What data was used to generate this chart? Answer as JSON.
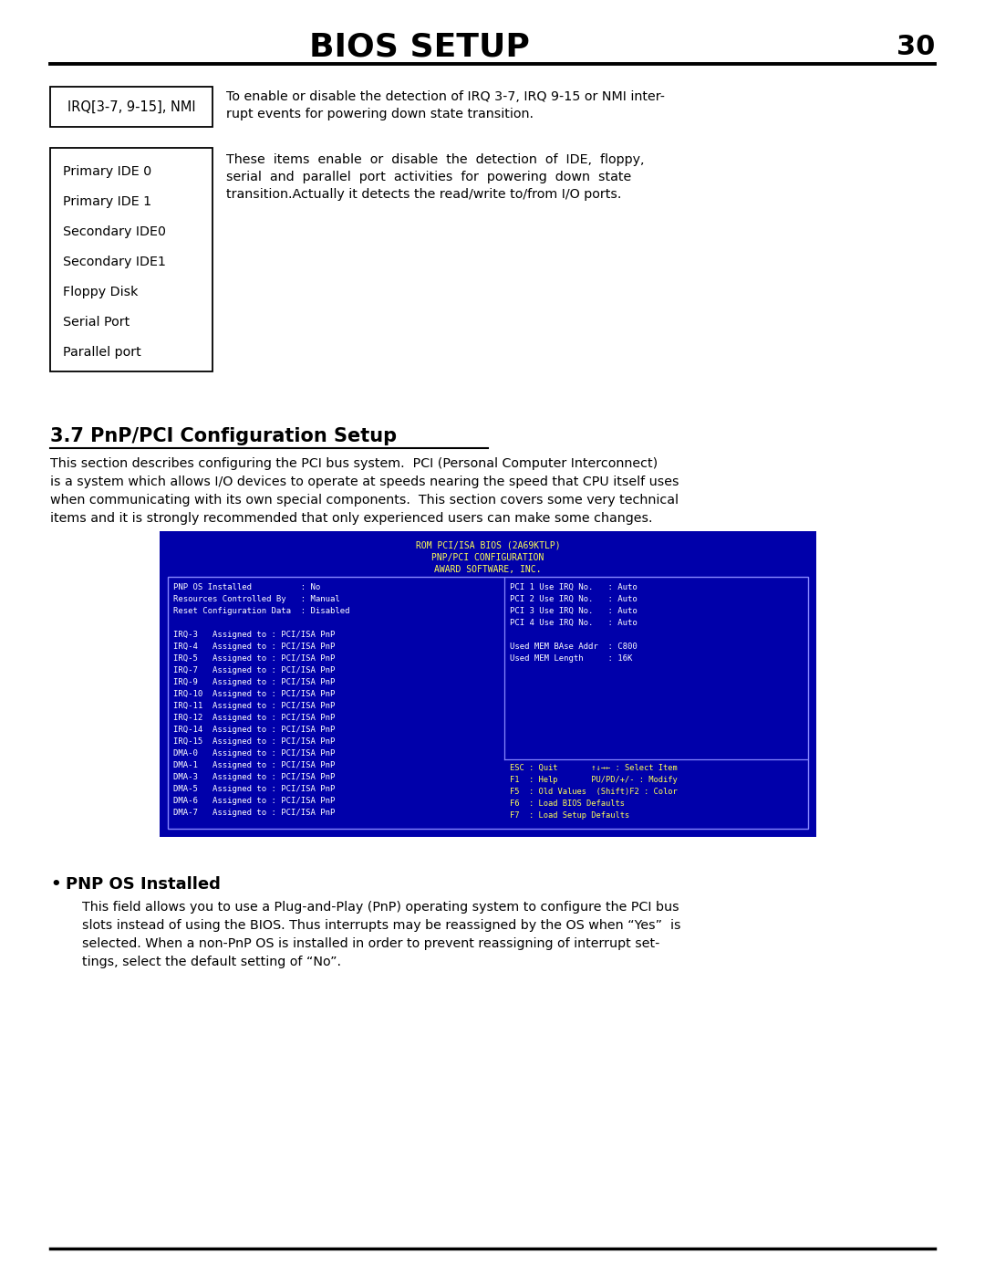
{
  "page_title": "BIOS SETUP",
  "page_number": "30",
  "bg_color": "#ffffff",
  "title_font_size": 26,
  "page_num_font_size": 22,
  "box1_label": "IRQ[3-7, 9-15], NMI",
  "box1_text_line1": "To enable or disable the detection of IRQ 3-7, IRQ 9-15 or NMI inter-",
  "box1_text_line2": "rupt events for powering down state transition.",
  "box2_items": [
    "Primary IDE 0",
    "Primary IDE 1",
    "Secondary IDE0",
    "Secondary IDE1",
    "Floppy Disk",
    "Serial Port",
    "Parallel port"
  ],
  "box2_text_line1": "These  items  enable  or  disable  the  detection  of  IDE,  floppy,",
  "box2_text_line2": "serial  and  parallel  port  activities  for  powering  down  state",
  "box2_text_line3": "transition.Actually it detects the read/write to/from I/O ports.",
  "section_title": "3.7 PnP/PCI Configuration Setup",
  "section_para_line1": "This section describes configuring the PCI bus system.  PCI (Personal Computer Interconnect)",
  "section_para_line2": "is a system which allows I/O devices to operate at speeds nearing the speed that CPU itself uses",
  "section_para_line3": "when communicating with its own special components.  This section covers some very technical",
  "section_para_line4": "items and it is strongly recommended that only experienced users can make some changes.",
  "bios_bg": "#0000aa",
  "bios_fg": "#ffff55",
  "bios_white": "#ffffff",
  "bios_title_lines": [
    "ROM PCI/ISA BIOS (2A69KTLP)",
    "PNP/PCI CONFIGURATION",
    "AWARD SOFTWARE, INC."
  ],
  "bios_left_col": [
    "PNP OS Installed          : No",
    "Resources Controlled By   : Manual",
    "Reset Configuration Data  : Disabled",
    "",
    "IRQ-3   Assigned to : PCI/ISA PnP",
    "IRQ-4   Assigned to : PCI/ISA PnP",
    "IRQ-5   Assigned to : PCI/ISA PnP",
    "IRQ-7   Assigned to : PCI/ISA PnP",
    "IRQ-9   Assigned to : PCI/ISA PnP",
    "IRQ-10  Assigned to : PCI/ISA PnP",
    "IRQ-11  Assigned to : PCI/ISA PnP",
    "IRQ-12  Assigned to : PCI/ISA PnP",
    "IRQ-14  Assigned to : PCI/ISA PnP",
    "IRQ-15  Assigned to : PCI/ISA PnP",
    "DMA-0   Assigned to : PCI/ISA PnP",
    "DMA-1   Assigned to : PCI/ISA PnP",
    "DMA-3   Assigned to : PCI/ISA PnP",
    "DMA-5   Assigned to : PCI/ISA PnP",
    "DMA-6   Assigned to : PCI/ISA PnP",
    "DMA-7   Assigned to : PCI/ISA PnP"
  ],
  "bios_right_top": [
    "PCI 1 Use IRQ No.   : Auto",
    "PCI 2 Use IRQ No.   : Auto",
    "PCI 3 Use IRQ No.   : Auto",
    "PCI 4 Use IRQ No.   : Auto",
    "",
    "Used MEM BAse Addr  : C800",
    "Used MEM Length     : 16K"
  ],
  "bios_right_bottom": [
    "ESC : Quit       ↑↓→← : Select Item",
    "F1  : Help       PU/PD/+/- : Modify",
    "F5  : Old Values  (Shift)F2 : Color",
    "F6  : Load BIOS Defaults",
    "F7  : Load Setup Defaults"
  ],
  "bullet_title": "PNP OS Installed",
  "bullet_body_line1": "This field allows you to use a Plug-and-Play (PnP) operating system to configure the PCI bus",
  "bullet_body_line2": "slots instead of using the BIOS. Thus interrupts may be reassigned by the OS when “Yes”  is",
  "bullet_body_line3": "selected. When a non-PnP OS is installed in order to prevent reassigning of interrupt set-",
  "bullet_body_line4": "tings, select the default setting of “No”."
}
